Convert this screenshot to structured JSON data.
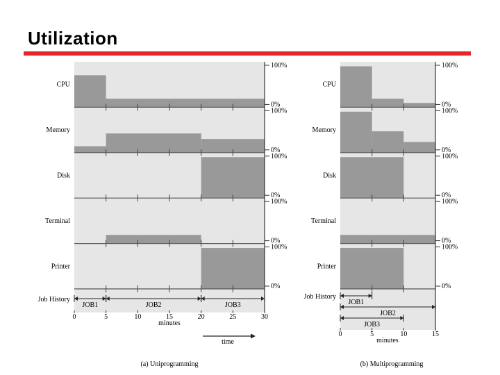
{
  "title": "Utilization",
  "colors": {
    "accent": "#e8252a",
    "panel": "#e6e6e6",
    "bar": "#999999"
  },
  "left": {
    "resources": [
      {
        "label": "CPU",
        "top": "100%",
        "bottom": "0%",
        "segments": [
          {
            "from": 0,
            "to": 5,
            "level": 0.75
          },
          {
            "from": 5,
            "to": 30,
            "level": 0.2
          }
        ]
      },
      {
        "label": "Memory",
        "top": "100%",
        "bottom": "0%",
        "segments": [
          {
            "from": 0,
            "to": 5,
            "level": 0.15
          },
          {
            "from": 5,
            "to": 20,
            "level": 0.45
          },
          {
            "from": 20,
            "to": 30,
            "level": 0.32
          }
        ]
      },
      {
        "label": "Disk",
        "top": "100%",
        "bottom": "0%",
        "segments": [
          {
            "from": 20,
            "to": 30,
            "level": 0.96
          }
        ]
      },
      {
        "label": "Terminal",
        "top": "100%",
        "bottom": "0%",
        "segments": [
          {
            "from": 5,
            "to": 20,
            "level": 0.2
          }
        ]
      },
      {
        "label": "Printer",
        "top": "100%",
        "bottom": "0%",
        "segments": [
          {
            "from": 20,
            "to": 30,
            "level": 0.96
          }
        ]
      }
    ],
    "job_history_label": "Job History",
    "jobs": [
      {
        "name": "JOB1",
        "from": 0,
        "to": 5
      },
      {
        "name": "JOB2",
        "from": 5,
        "to": 20
      },
      {
        "name": "JOB3",
        "from": 20,
        "to": 30
      }
    ],
    "ticks": [
      "0",
      "5",
      "10",
      "15",
      "20",
      "25",
      "30"
    ],
    "axis_label": "minutes",
    "time_label": "time",
    "caption": "(a) Uniprogramming"
  },
  "right": {
    "resources": [
      {
        "label": "CPU",
        "top": "100%",
        "bottom": "0%",
        "segments": [
          {
            "from": 0,
            "to": 5,
            "level": 0.96
          },
          {
            "from": 5,
            "to": 10,
            "level": 0.2
          },
          {
            "from": 10,
            "to": 15,
            "level": 0.1
          }
        ]
      },
      {
        "label": "Memory",
        "top": "100%",
        "bottom": "0%",
        "segments": [
          {
            "from": 0,
            "to": 5,
            "level": 0.96
          },
          {
            "from": 5,
            "to": 10,
            "level": 0.5
          },
          {
            "from": 10,
            "to": 15,
            "level": 0.25
          }
        ]
      },
      {
        "label": "Disk",
        "top": "100%",
        "bottom": "0%",
        "segments": [
          {
            "from": 0,
            "to": 10,
            "level": 0.96
          }
        ]
      },
      {
        "label": "Terminal",
        "top": "100%",
        "bottom": "0%",
        "segments": [
          {
            "from": 0,
            "to": 15,
            "level": 0.2
          }
        ]
      },
      {
        "label": "Printer",
        "top": "100%",
        "bottom": "0%",
        "segments": [
          {
            "from": 0,
            "to": 10,
            "level": 0.96
          }
        ]
      }
    ],
    "job_history_label": "Job History",
    "jobs": [
      {
        "name": "JOB1",
        "from": 0,
        "to": 5
      },
      {
        "name": "JOB2",
        "from": 0,
        "to": 15
      },
      {
        "name": "JOB3",
        "from": 0,
        "to": 10
      }
    ],
    "ticks": [
      "0",
      "5",
      "10",
      "15"
    ],
    "axis_label": "minutes",
    "caption": "(b) Multiprogramming"
  }
}
